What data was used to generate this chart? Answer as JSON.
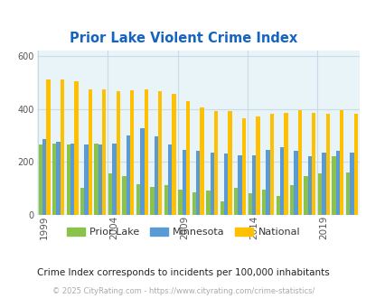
{
  "title": "Prior Lake Violent Crime Index",
  "years": [
    1999,
    2000,
    2001,
    2002,
    2003,
    2004,
    2005,
    2006,
    2007,
    2008,
    2009,
    2010,
    2011,
    2012,
    2013,
    2014,
    2015,
    2016,
    2017,
    2018,
    2019,
    2020,
    2021
  ],
  "prior_lake": [
    265,
    270,
    265,
    100,
    270,
    155,
    145,
    115,
    105,
    110,
    95,
    85,
    90,
    50,
    100,
    80,
    95,
    70,
    110,
    145,
    155,
    220,
    160
  ],
  "minnesota": [
    285,
    275,
    270,
    265,
    265,
    270,
    300,
    325,
    295,
    265,
    245,
    240,
    235,
    230,
    225,
    225,
    245,
    255,
    240,
    220,
    235,
    240,
    235
  ],
  "national": [
    510,
    510,
    505,
    475,
    475,
    465,
    470,
    475,
    465,
    455,
    430,
    405,
    390,
    390,
    365,
    370,
    380,
    385,
    395,
    385,
    380,
    395,
    380
  ],
  "prior_lake_color": "#8bc34a",
  "minnesota_color": "#5b9bd5",
  "national_color": "#ffc000",
  "bg_color": "#e8f4f8",
  "ylim": [
    0,
    620
  ],
  "yticks": [
    0,
    200,
    400,
    600
  ],
  "xlabel_ticks": [
    1999,
    2004,
    2009,
    2014,
    2019
  ],
  "subtitle": "Crime Index corresponds to incidents per 100,000 inhabitants",
  "footer": "© 2025 CityRating.com - https://www.cityrating.com/crime-statistics/",
  "title_color": "#1565c0",
  "subtitle_color": "#222222",
  "footer_color": "#aaaaaa",
  "grid_color": "#c8dce8"
}
